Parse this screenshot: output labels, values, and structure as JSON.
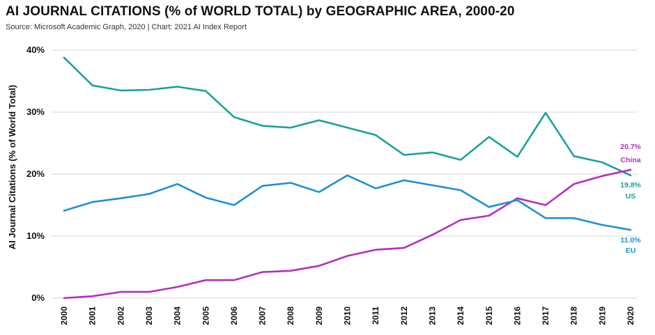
{
  "chart_data": {
    "type": "line",
    "title": "AI JOURNAL CITATIONS (% of WORLD TOTAL) by GEOGRAPHIC AREA, 2000-20",
    "subtitle": "Source: Microsoft Academic Graph, 2020 | Chart: 2021 AI Index Report",
    "ylabel": "AI Journal Citations (% of World Total)",
    "xlabel": "",
    "x": [
      "2000",
      "2001",
      "2002",
      "2003",
      "2004",
      "2005",
      "2006",
      "2007",
      "2008",
      "2009",
      "2010",
      "2011",
      "2012",
      "2013",
      "2014",
      "2015",
      "2016",
      "2017",
      "2018",
      "2019",
      "2020"
    ],
    "ylim": [
      0,
      40
    ],
    "yticks": [
      0,
      10,
      20,
      30,
      40
    ],
    "ytick_labels": [
      "0%",
      "10%",
      "20%",
      "30%",
      "40%"
    ],
    "grid": true,
    "series": [
      {
        "name": "US",
        "color": "#1aa19b",
        "values": [
          38.8,
          34.3,
          33.5,
          33.6,
          34.1,
          33.4,
          29.2,
          27.8,
          27.5,
          28.7,
          27.5,
          26.3,
          23.1,
          23.5,
          22.3,
          26.0,
          22.8,
          29.9,
          22.9,
          21.9,
          19.8
        ],
        "end_value_label": "19.8%"
      },
      {
        "name": "China",
        "color": "#b52ebe",
        "values": [
          0.0,
          0.3,
          1.0,
          1.0,
          1.8,
          2.9,
          2.9,
          4.2,
          4.4,
          5.2,
          6.8,
          7.8,
          8.1,
          10.2,
          12.6,
          13.3,
          16.1,
          15.0,
          18.4,
          19.7,
          20.7
        ],
        "end_value_label": "20.7%"
      },
      {
        "name": "EU",
        "color": "#1d8fd6",
        "values": [
          14.1,
          15.5,
          16.1,
          16.8,
          18.4,
          16.2,
          15.0,
          18.1,
          18.6,
          17.1,
          19.8,
          17.7,
          19.0,
          18.2,
          17.4,
          14.7,
          15.8,
          12.9,
          12.9,
          11.8,
          11.0
        ],
        "end_value_label": "11.0%"
      }
    ]
  }
}
